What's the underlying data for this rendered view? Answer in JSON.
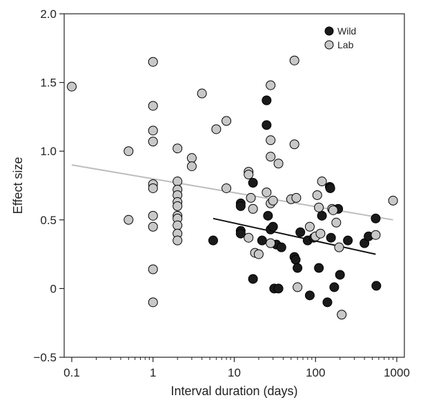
{
  "chart_data": {
    "type": "scatter",
    "xlabel": "Interval duration (days)",
    "ylabel": "Effect size",
    "xscale": "log",
    "xlim": [
      0.1,
      1000
    ],
    "ylim": [
      -0.5,
      2.0
    ],
    "xticks": [
      0.1,
      1,
      10,
      100,
      1000
    ],
    "xtick_labels": [
      "0.1",
      "1",
      "10",
      "100",
      "1000"
    ],
    "yticks": [
      -0.5,
      0,
      0.5,
      1.0,
      1.5,
      2.0
    ],
    "ytick_labels": [
      "−0.5",
      "0",
      "0.5",
      "1.0",
      "1.5",
      "2.0"
    ],
    "grid": false,
    "legend_position": "top-right",
    "series": [
      {
        "name": "Wild",
        "color": "#1a1a1a",
        "points": [
          [
            5.5,
            0.35
          ],
          [
            12,
            0.62
          ],
          [
            12,
            0.6
          ],
          [
            12,
            0.42
          ],
          [
            12,
            0.4
          ],
          [
            17,
            0.77
          ],
          [
            17,
            0.07
          ],
          [
            22,
            0.35
          ],
          [
            25,
            1.37
          ],
          [
            25,
            1.19
          ],
          [
            26,
            0.53
          ],
          [
            28,
            0.43
          ],
          [
            30,
            0.45
          ],
          [
            31,
            0.0
          ],
          [
            33,
            0.32
          ],
          [
            35,
            0.0
          ],
          [
            38,
            0.3
          ],
          [
            55,
            0.23
          ],
          [
            57,
            0.21
          ],
          [
            60,
            0.15
          ],
          [
            65,
            0.41
          ],
          [
            80,
            0.35
          ],
          [
            85,
            -0.05
          ],
          [
            95,
            0.37
          ],
          [
            110,
            0.15
          ],
          [
            120,
            0.53
          ],
          [
            140,
            -0.1
          ],
          [
            150,
            0.74
          ],
          [
            152,
            0.73
          ],
          [
            155,
            0.37
          ],
          [
            170,
            0.01
          ],
          [
            190,
            0.58
          ],
          [
            200,
            0.1
          ],
          [
            250,
            0.35
          ],
          [
            400,
            0.33
          ],
          [
            450,
            0.38
          ],
          [
            550,
            0.51
          ],
          [
            560,
            0.02
          ]
        ],
        "trend": [
          [
            5.5,
            0.51
          ],
          [
            550,
            0.25
          ]
        ]
      },
      {
        "name": "Lab",
        "color": "#c8c8c8",
        "points": [
          [
            0.1,
            1.47
          ],
          [
            0.5,
            1.0
          ],
          [
            0.5,
            0.5
          ],
          [
            1,
            1.65
          ],
          [
            1,
            1.33
          ],
          [
            1,
            1.15
          ],
          [
            1,
            1.07
          ],
          [
            1,
            0.76
          ],
          [
            1,
            0.73
          ],
          [
            1,
            0.53
          ],
          [
            1,
            0.45
          ],
          [
            1,
            0.14
          ],
          [
            1,
            -0.1
          ],
          [
            2,
            1.02
          ],
          [
            2,
            0.78
          ],
          [
            2,
            0.72
          ],
          [
            2,
            0.68
          ],
          [
            2,
            0.63
          ],
          [
            2,
            0.6
          ],
          [
            2,
            0.53
          ],
          [
            2,
            0.51
          ],
          [
            2,
            0.46
          ],
          [
            2,
            0.4
          ],
          [
            2,
            0.35
          ],
          [
            3,
            0.95
          ],
          [
            3,
            0.89
          ],
          [
            4,
            1.42
          ],
          [
            6,
            1.16
          ],
          [
            8,
            1.22
          ],
          [
            8,
            0.73
          ],
          [
            15,
            0.85
          ],
          [
            15,
            0.83
          ],
          [
            15,
            0.37
          ],
          [
            16,
            0.66
          ],
          [
            17,
            0.58
          ],
          [
            18,
            0.26
          ],
          [
            20,
            0.25
          ],
          [
            25,
            0.7
          ],
          [
            28,
            1.48
          ],
          [
            28,
            1.08
          ],
          [
            28,
            0.96
          ],
          [
            28,
            0.62
          ],
          [
            28,
            0.33
          ],
          [
            30,
            0.64
          ],
          [
            35,
            0.91
          ],
          [
            50,
            0.65
          ],
          [
            55,
            1.66
          ],
          [
            55,
            1.05
          ],
          [
            58,
            0.66
          ],
          [
            60,
            0.01
          ],
          [
            85,
            0.45
          ],
          [
            100,
            0.38
          ],
          [
            105,
            0.68
          ],
          [
            110,
            0.59
          ],
          [
            115,
            0.4
          ],
          [
            120,
            0.78
          ],
          [
            160,
            0.58
          ],
          [
            165,
            0.57
          ],
          [
            180,
            0.48
          ],
          [
            195,
            0.3
          ],
          [
            210,
            -0.19
          ],
          [
            550,
            0.39
          ],
          [
            900,
            0.64
          ]
        ],
        "trend": [
          [
            0.1,
            0.9
          ],
          [
            900,
            0.5
          ]
        ]
      }
    ]
  }
}
